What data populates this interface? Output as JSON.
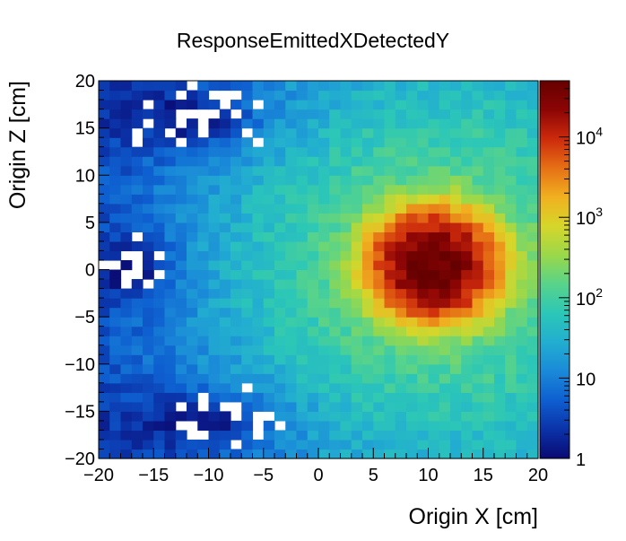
{
  "chart_data": {
    "type": "heatmap",
    "title": "ResponseEmittedXDetectedY",
    "xlabel": "Origin X [cm]",
    "ylabel": "Origin Z [cm]",
    "xlim": [
      -20,
      20
    ],
    "ylim": [
      -20,
      20
    ],
    "x_bins": 40,
    "y_bins": 40,
    "x_ticks": [
      -20,
      -15,
      -10,
      -5,
      0,
      5,
      10,
      15,
      20
    ],
    "y_ticks": [
      -20,
      -15,
      -10,
      -5,
      0,
      5,
      10,
      15,
      20
    ],
    "x_tick_labels": [
      "−20",
      "−15",
      "−10",
      "−5",
      "0",
      "5",
      "10",
      "15",
      "20"
    ],
    "y_tick_labels": [
      "−20",
      "−15",
      "−10",
      "−5",
      "0",
      "5",
      "10",
      "15",
      "20"
    ],
    "colorbar": {
      "scale": "log",
      "range": [
        1,
        50000
      ],
      "labels": [
        {
          "base": "1",
          "exp": "",
          "value": 1
        },
        {
          "base": "10",
          "exp": "",
          "value": 10
        },
        {
          "base": "10",
          "exp": "2",
          "value": 100
        },
        {
          "base": "10",
          "exp": "3",
          "value": 1000
        },
        {
          "base": "10",
          "exp": "4",
          "value": 10000
        }
      ],
      "palette": [
        "#0a0a72",
        "#0b32a8",
        "#0e5fd0",
        "#1a8ad8",
        "#22aed0",
        "#2cc7b7",
        "#58d38a",
        "#9ad84a",
        "#d6d62a",
        "#f0b020",
        "#e67015",
        "#cc2a0c",
        "#8c0505",
        "#660000"
      ]
    },
    "peak": {
      "x": 10.5,
      "z": 0.5,
      "value": 50000,
      "sigma_cm": 2.4
    },
    "grid": false,
    "legend": "none"
  }
}
